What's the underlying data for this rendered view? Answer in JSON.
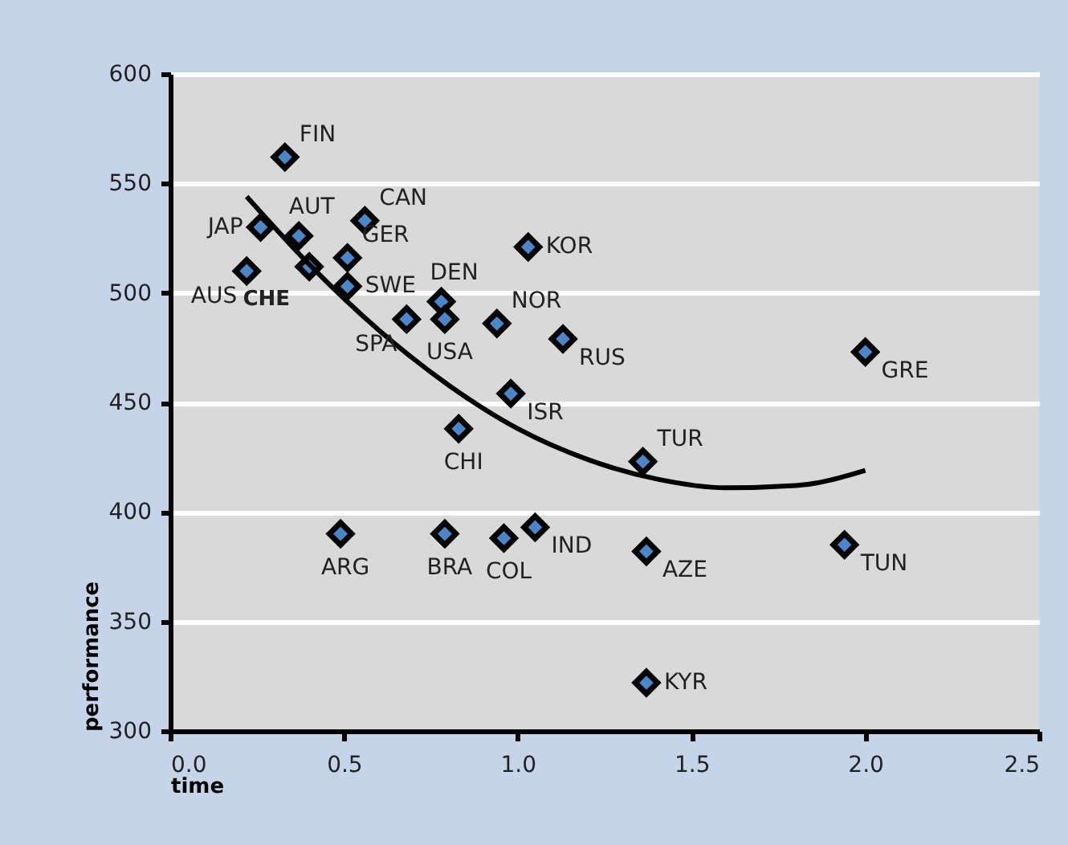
{
  "chart_data": {
    "type": "scatter",
    "xlabel": "time",
    "ylabel": "performance",
    "xlim": [
      0,
      2.5
    ],
    "xticks": [
      {
        "value": 0,
        "label": "0.0"
      },
      {
        "value": 0.5,
        "label": "0.5"
      },
      {
        "value": 1,
        "label": "1.0"
      },
      {
        "value": 1.5,
        "label": "1.5"
      },
      {
        "value": 2,
        "label": "2.0"
      },
      {
        "value": 2.5,
        "label": "2.5"
      }
    ],
    "ylim": [
      300,
      600
    ],
    "yticks": [
      300,
      350,
      400,
      450,
      500,
      550,
      600
    ],
    "grid": "y",
    "marker": "diamond",
    "series": [
      {
        "color": "#4a86c8",
        "x": [
          0.26,
          0.22,
          0.33,
          0.37,
          0.4,
          0.56,
          0.51,
          0.51,
          0.78,
          0.79,
          0.68,
          0.94,
          1.03,
          1.13,
          0.98,
          0.83,
          1.36,
          2.0,
          0.49,
          0.79,
          0.96,
          1.05,
          1.37,
          1.94,
          1.37
        ],
        "values": [
          530,
          510,
          562,
          526,
          512,
          533,
          516,
          503,
          496,
          488,
          488,
          486,
          521,
          479,
          454,
          438,
          423,
          473,
          390,
          390,
          388,
          393,
          382,
          385,
          322
        ]
      },
      {
        "type": "line",
        "color": "#000000",
        "marker": "none",
        "x": [
          0.22,
          0.4,
          0.6,
          0.8,
          1.0,
          1.2,
          1.4,
          1.6,
          1.8,
          2.0
        ],
        "values": [
          544,
          513,
          483,
          458,
          438,
          424,
          415,
          411,
          412,
          419
        ]
      }
    ],
    "annotations": [
      {
        "text": "JAP",
        "x": 0.26,
        "y": 530
      },
      {
        "text": "AUS",
        "x": 0.22,
        "y": 510
      },
      {
        "text": "FIN",
        "x": 0.33,
        "y": 562
      },
      {
        "text": "AUT",
        "x": 0.37,
        "y": 526
      },
      {
        "text": "CHE",
        "x": 0.4,
        "y": 512
      },
      {
        "text": "CAN",
        "x": 0.56,
        "y": 533
      },
      {
        "text": "GER",
        "x": 0.51,
        "y": 516
      },
      {
        "text": "SWE",
        "x": 0.51,
        "y": 503
      },
      {
        "text": "DEN",
        "x": 0.78,
        "y": 496
      },
      {
        "text": "USA",
        "x": 0.79,
        "y": 488
      },
      {
        "text": "SPA",
        "x": 0.68,
        "y": 488
      },
      {
        "text": "NOR",
        "x": 0.94,
        "y": 486
      },
      {
        "text": "KOR",
        "x": 1.03,
        "y": 521
      },
      {
        "text": "RUS",
        "x": 1.13,
        "y": 479
      },
      {
        "text": "ISR",
        "x": 0.98,
        "y": 454
      },
      {
        "text": "CHI",
        "x": 0.83,
        "y": 438
      },
      {
        "text": "TUR",
        "x": 1.36,
        "y": 423
      },
      {
        "text": "GRE",
        "x": 2.0,
        "y": 473
      },
      {
        "text": "ARG",
        "x": 0.49,
        "y": 390
      },
      {
        "text": "BRA",
        "x": 0.79,
        "y": 390
      },
      {
        "text": "COL",
        "x": 0.96,
        "y": 388
      },
      {
        "text": "IND",
        "x": 1.05,
        "y": 393
      },
      {
        "text": "AZE",
        "x": 1.37,
        "y": 382
      },
      {
        "text": "TUN",
        "x": 1.94,
        "y": 385
      },
      {
        "text": "KYR",
        "x": 1.37,
        "y": 322
      }
    ]
  }
}
